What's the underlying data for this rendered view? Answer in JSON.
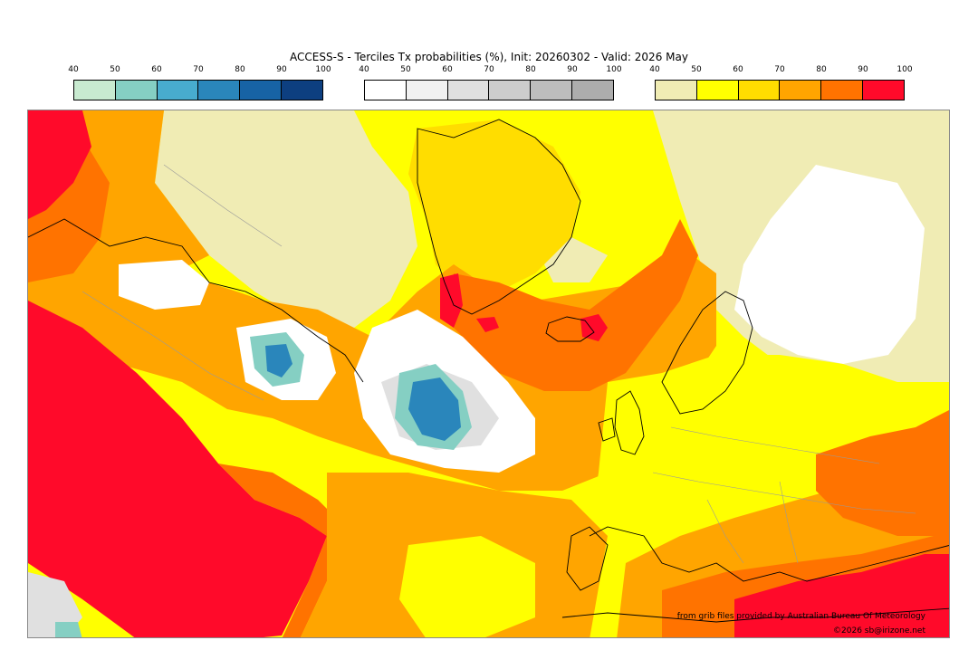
{
  "title": "ACCESS-S - Terciles Tx probabilities (%), Init: 20260302 - Valid: 2026 May",
  "colorbars": [
    {
      "ticks": [
        "40",
        "50",
        "60",
        "70",
        "80",
        "90",
        "100"
      ],
      "colors": [
        "#c8ead0",
        "#85cfc3",
        "#48acce",
        "#2a86bb",
        "#1763a5",
        "#0d3f80"
      ]
    },
    {
      "ticks": [
        "40",
        "50",
        "60",
        "70",
        "80",
        "90",
        "100"
      ],
      "colors": [
        "#ffffff",
        "#f1f1f1",
        "#e0e0e0",
        "#cdcdcd",
        "#bdbdbd",
        "#adadad"
      ]
    },
    {
      "ticks": [
        "40",
        "50",
        "60",
        "70",
        "80",
        "90",
        "100"
      ],
      "colors": [
        "#f0ecb4",
        "#ffff00",
        "#ffdd00",
        "#ffa500",
        "#ff7300",
        "#ff0a2a"
      ]
    }
  ],
  "credits": {
    "source": "from grib files provided by Australian Bureau Of Meteorology",
    "copyright": "©2026 sb@irizone.net"
  }
}
